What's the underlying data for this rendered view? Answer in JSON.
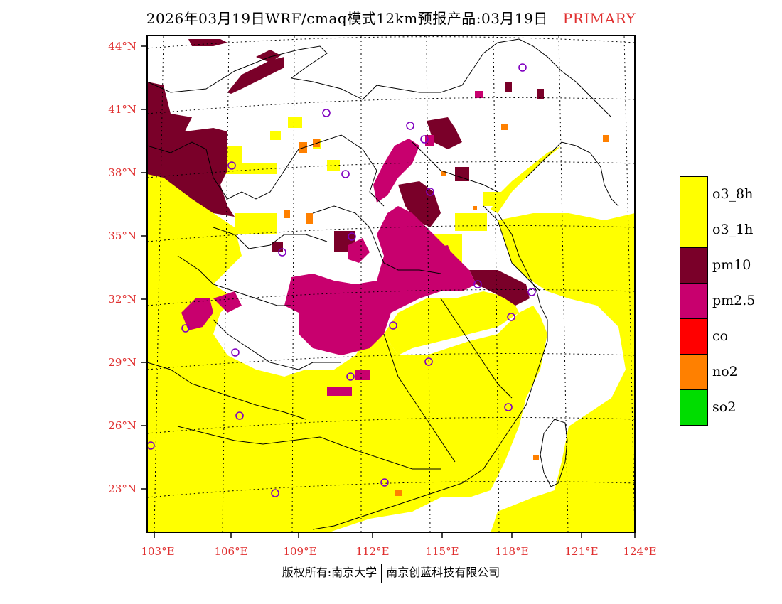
{
  "title": {
    "main": "2026年03月19日WRF/cmaq模式12km预报产品:03月19日",
    "tag": "PRIMARY"
  },
  "axes": {
    "lat_labels": [
      "44°N",
      "41°N",
      "38°N",
      "35°N",
      "32°N",
      "29°N",
      "26°N",
      "23°N"
    ],
    "lon_labels": [
      "103°E",
      "106°E",
      "109°E",
      "112°E",
      "115°E",
      "118°E",
      "121°E",
      "124°E"
    ]
  },
  "legend": [
    {
      "label": "o3_8h",
      "color": "#ffff00"
    },
    {
      "label": "o3_1h",
      "color": "#ffff00"
    },
    {
      "label": "pm10",
      "color": "#7a0029"
    },
    {
      "label": "pm2.5",
      "color": "#c8006e"
    },
    {
      "label": "co",
      "color": "#ff0000"
    },
    {
      "label": "no2",
      "color": "#ff8000"
    },
    {
      "label": "so2",
      "color": "#00dd00"
    }
  ],
  "footer": {
    "left": "版权所有:南京大学",
    "right": "南京创蓝科技有限公司"
  },
  "colors": {
    "o3": "#ffff00",
    "pm10": "#7a0029",
    "pm25": "#c8006e",
    "no2": "#ff8000",
    "station": "#8000c0",
    "axis_label": "#e03030"
  }
}
